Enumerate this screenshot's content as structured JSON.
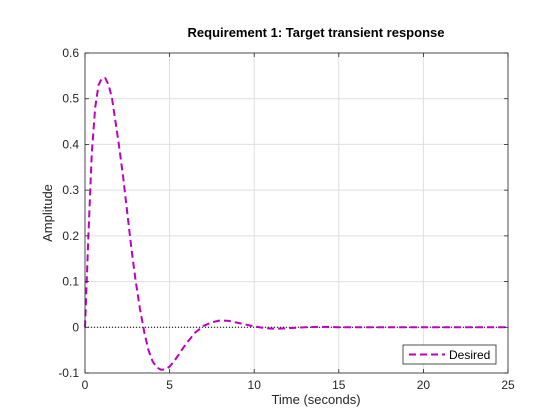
{
  "chart_data": {
    "type": "line",
    "title": "Requirement 1: Target transient response",
    "xlabel": "Time (seconds)",
    "ylabel": "Amplitude",
    "xlim": [
      0,
      25
    ],
    "ylim": [
      -0.1,
      0.6
    ],
    "xticks": [
      "0",
      "5",
      "10",
      "15",
      "20",
      "25"
    ],
    "xtick_values": [
      0,
      5,
      10,
      15,
      20,
      25
    ],
    "yticks": [
      "-0.1",
      "0",
      "0.1",
      "0.2",
      "0.3",
      "0.4",
      "0.5",
      "0.6"
    ],
    "ytick_values": [
      -0.1,
      0,
      0.1,
      0.2,
      0.3,
      0.4,
      0.5,
      0.6
    ],
    "grid": true,
    "legend_position": "bottom-right",
    "reference_line": {
      "y": 0,
      "style": "dotted",
      "color": "#000000"
    },
    "series": [
      {
        "name": "Desired",
        "color": "#bf00bf",
        "style": "dashed",
        "x": [
          0,
          0.2,
          0.4,
          0.6,
          0.8,
          1.0,
          1.2,
          1.4,
          1.6,
          1.8,
          2.0,
          2.25,
          2.5,
          2.75,
          3.0,
          3.25,
          3.5,
          3.75,
          4.0,
          4.25,
          4.5,
          4.75,
          5.0,
          5.25,
          5.5,
          5.75,
          6.0,
          6.5,
          7.0,
          7.5,
          8.0,
          8.5,
          9.0,
          9.5,
          10.0,
          10.5,
          11.0,
          11.5,
          12.0,
          12.5,
          13.0,
          14.0,
          15.0,
          16.0,
          17.0,
          18.0,
          20.0,
          22.5,
          25.0
        ],
        "values": [
          0,
          0.2,
          0.38,
          0.48,
          0.53,
          0.545,
          0.545,
          0.53,
          0.5,
          0.45,
          0.4,
          0.33,
          0.25,
          0.17,
          0.1,
          0.04,
          -0.01,
          -0.05,
          -0.075,
          -0.088,
          -0.093,
          -0.092,
          -0.086,
          -0.075,
          -0.062,
          -0.048,
          -0.035,
          -0.012,
          0.003,
          0.011,
          0.015,
          0.014,
          0.01,
          0.006,
          0.002,
          -0.001,
          -0.003,
          -0.003,
          -0.002,
          -0.001,
          0.0,
          0.001,
          0.0,
          0.0,
          0.0,
          0.0,
          0.0,
          0.0,
          0.0
        ]
      }
    ]
  }
}
